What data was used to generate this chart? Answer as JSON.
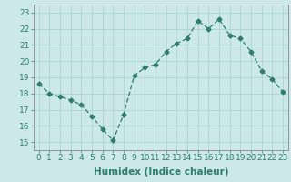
{
  "x": [
    0,
    1,
    2,
    3,
    4,
    5,
    6,
    7,
    8,
    9,
    10,
    11,
    12,
    13,
    14,
    15,
    16,
    17,
    18,
    19,
    20,
    21,
    22,
    23
  ],
  "y": [
    18.6,
    18.0,
    17.8,
    17.6,
    17.3,
    16.6,
    15.8,
    15.1,
    16.7,
    19.1,
    19.6,
    19.8,
    20.6,
    21.1,
    21.4,
    22.5,
    22.0,
    22.6,
    21.6,
    21.4,
    20.6,
    19.4,
    18.9,
    18.1
  ],
  "line_color": "#2e7d6e",
  "marker": "D",
  "marker_size": 2.5,
  "bg_color": "#cce8e8",
  "grid_color": "#aad4d4",
  "xlabel": "Humidex (Indice chaleur)",
  "xlabel_fontsize": 7.5,
  "tick_fontsize": 6.5,
  "ylim": [
    14.5,
    23.5
  ],
  "xlim": [
    -0.5,
    23.5
  ],
  "yticks": [
    15,
    16,
    17,
    18,
    19,
    20,
    21,
    22,
    23
  ],
  "xticks": [
    0,
    1,
    2,
    3,
    4,
    5,
    6,
    7,
    8,
    9,
    10,
    11,
    12,
    13,
    14,
    15,
    16,
    17,
    18,
    19,
    20,
    21,
    22,
    23
  ]
}
